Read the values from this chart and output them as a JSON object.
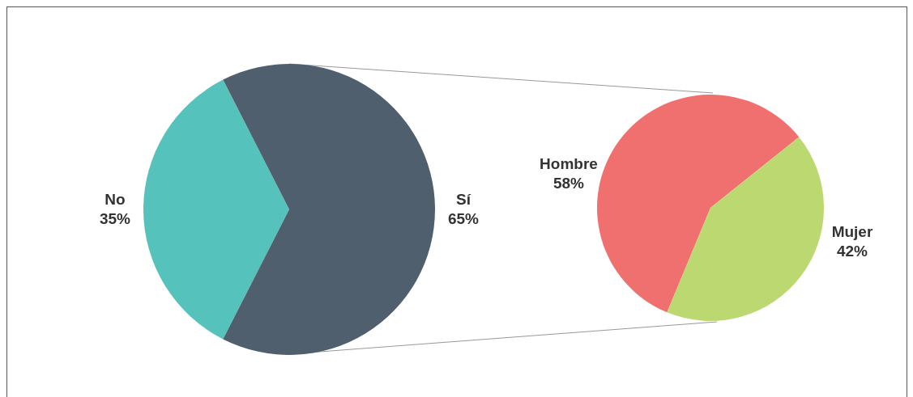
{
  "chart_data": [
    {
      "type": "pie",
      "categories": [
        "No",
        "Sí"
      ],
      "values": [
        35,
        65
      ],
      "colors": [
        "#55c2bb",
        "#4f5f6e"
      ],
      "value_labels": [
        "35%",
        "65%"
      ],
      "legend": false
    },
    {
      "type": "pie",
      "categories": [
        "Hombre",
        "Mujer"
      ],
      "values": [
        58,
        42
      ],
      "colors": [
        "#f07070",
        "#bcd870"
      ],
      "value_labels": [
        "58%",
        "42%"
      ],
      "legend": false
    }
  ]
}
